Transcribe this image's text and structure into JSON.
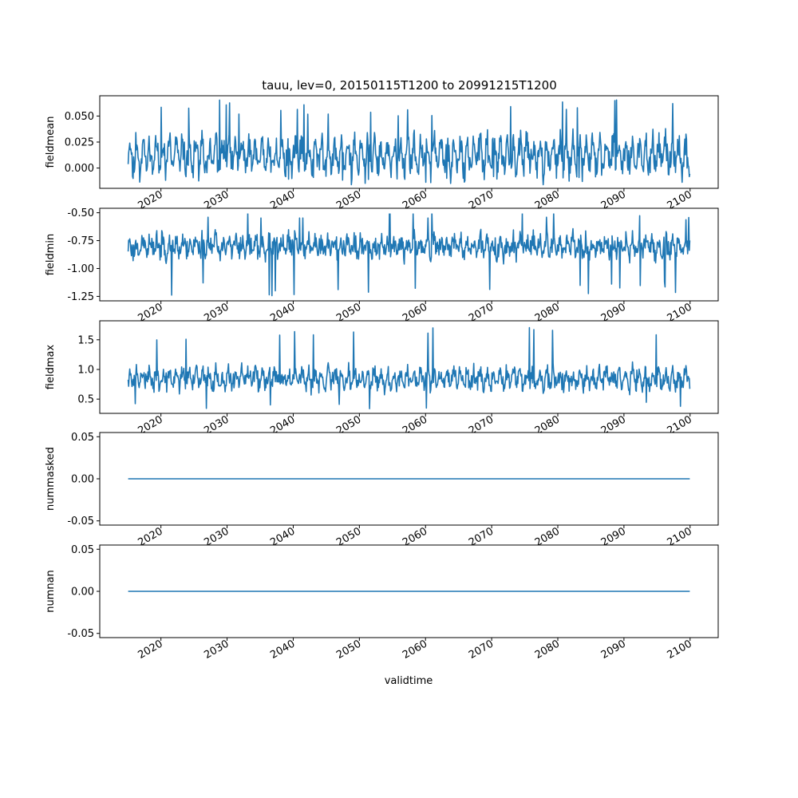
{
  "title": "tauu, lev=0, 20150115T1200 to 20991215T1200",
  "chart_data": {
    "type": "line",
    "title": "tauu, lev=0, 20150115T1200 to 20991215T1200",
    "xlabel": "validtime",
    "x_start": "2015-01",
    "x_end": "2099-12",
    "x_tick_labels": [
      "2020",
      "2030",
      "2040",
      "2050",
      "2060",
      "2070",
      "2080",
      "2090",
      "2100"
    ],
    "line_color": "#1f77b4",
    "grid": false,
    "panels": [
      {
        "ylabel": "fieldmean",
        "ylim": [
          -0.0195,
          0.0695
        ],
        "yticks": [
          "0.000",
          "0.025",
          "0.050"
        ],
        "shape": "noise",
        "center": 0.012,
        "amp": 0.017,
        "seasonal": 0.012,
        "spike_max": 0.066,
        "spike_min": -0.016,
        "seed": 11
      },
      {
        "ylabel": "fieldmin",
        "ylim": [
          -1.29,
          -0.46
        ],
        "yticks": [
          "-1.25",
          "-1.00",
          "-0.75",
          "-0.50"
        ],
        "shape": "noise",
        "center": -0.8,
        "amp": 0.12,
        "seasonal": 0.05,
        "spike_max": -0.46,
        "spike_min": -1.25,
        "seed": 23
      },
      {
        "ylabel": "fieldmax",
        "ylim": [
          0.26,
          1.82
        ],
        "yticks": [
          "0.5",
          "1.0",
          "1.5"
        ],
        "shape": "noise",
        "center": 0.85,
        "amp": 0.2,
        "seasonal": 0.1,
        "spike_max": 1.76,
        "spike_min": 0.31,
        "seed": 37
      },
      {
        "ylabel": "nummasked",
        "ylim": [
          -0.055,
          0.055
        ],
        "yticks": [
          "-0.05",
          "0.00",
          "0.05"
        ],
        "shape": "constant",
        "value": 0
      },
      {
        "ylabel": "numnan",
        "ylim": [
          -0.055,
          0.055
        ],
        "yticks": [
          "-0.05",
          "0.00",
          "0.05"
        ],
        "shape": "constant",
        "value": 0
      }
    ]
  }
}
